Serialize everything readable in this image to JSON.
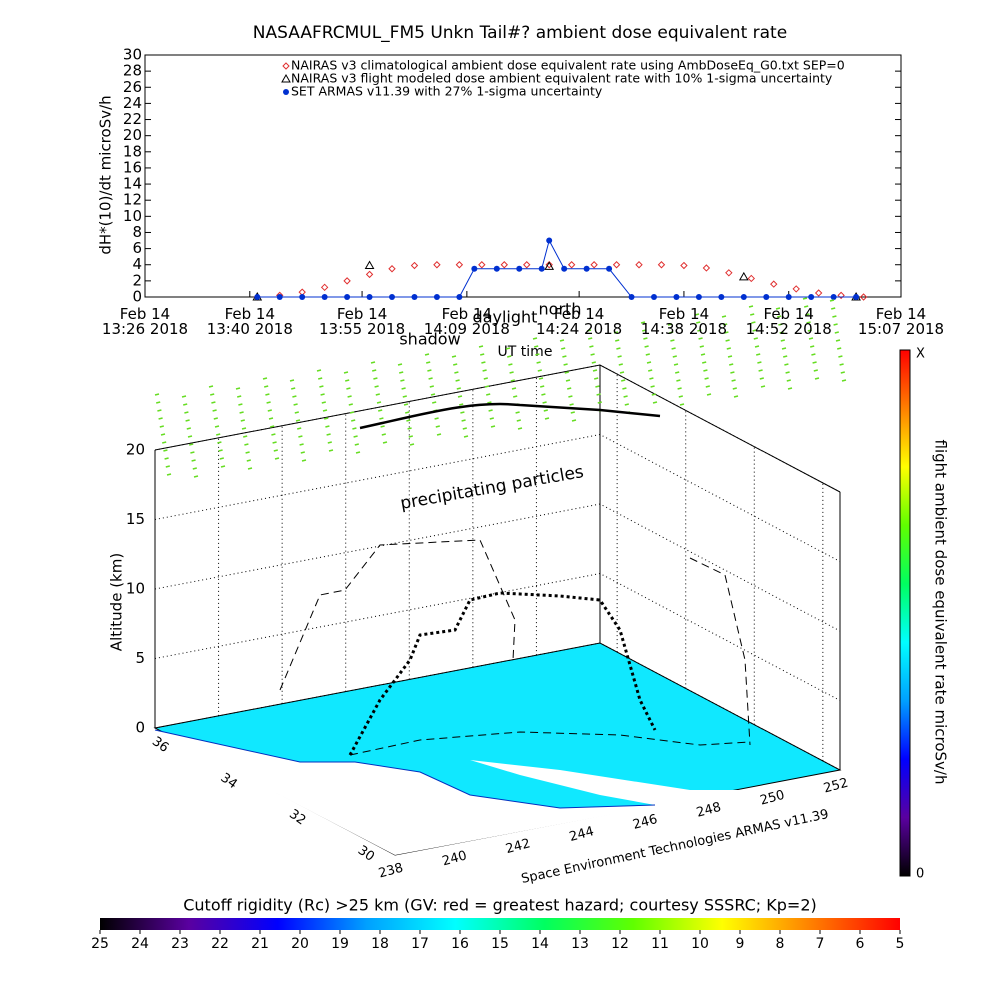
{
  "chart_data": [
    {
      "type": "line",
      "title": "NASAAFRCMUL_FM5 Unkn Tail#? ambient dose equivalent rate",
      "ylabel": "dH*(10)/dt microSv/h",
      "xlabel": "UT time",
      "ylim": [
        0,
        30
      ],
      "yticks": [
        0,
        2,
        4,
        6,
        8,
        10,
        12,
        14,
        16,
        18,
        20,
        22,
        24,
        26,
        28,
        30
      ],
      "xlim": [
        "2018-02-14 13:26",
        "2018-02-14 15:07"
      ],
      "xticks": [
        {
          "value": "2018-02-14 13:26",
          "label": "Feb 14\n13:26 2018"
        },
        {
          "value": "2018-02-14 13:40",
          "label": "Feb 14\n13:40 2018"
        },
        {
          "value": "2018-02-14 13:55",
          "label": "Feb 14\n13:55 2018"
        },
        {
          "value": "2018-02-14 14:09",
          "label": "Feb 14\n14:09 2018"
        },
        {
          "value": "2018-02-14 14:24",
          "label": "Feb 14\n14:24 2018"
        },
        {
          "value": "2018-02-14 14:38",
          "label": "Feb 14\n14:38 2018"
        },
        {
          "value": "2018-02-14 14:52",
          "label": "Feb 14\n14:52 2018"
        },
        {
          "value": "2018-02-14 15:07",
          "label": "Feb 14\n15:07 2018"
        }
      ],
      "annotations": [
        "shadow",
        "daylight",
        "north"
      ],
      "series": [
        {
          "name": "NAIRAS v3 climatological ambient dose equivalent rate using AmbDoseEq_G0.txt SEP=0",
          "color": "#e03030",
          "marker": "diamond",
          "x": [
            "2018-02-14 13:41",
            "2018-02-14 13:44",
            "2018-02-14 13:47",
            "2018-02-14 13:50",
            "2018-02-14 13:53",
            "2018-02-14 13:56",
            "2018-02-14 13:59",
            "2018-02-14 14:02",
            "2018-02-14 14:05",
            "2018-02-14 14:08",
            "2018-02-14 14:11",
            "2018-02-14 14:14",
            "2018-02-14 14:17",
            "2018-02-14 14:20",
            "2018-02-14 14:23",
            "2018-02-14 14:26",
            "2018-02-14 14:29",
            "2018-02-14 14:32",
            "2018-02-14 14:35",
            "2018-02-14 14:38",
            "2018-02-14 14:41",
            "2018-02-14 14:44",
            "2018-02-14 14:47",
            "2018-02-14 14:50",
            "2018-02-14 14:53",
            "2018-02-14 14:56",
            "2018-02-14 14:59",
            "2018-02-14 15:02"
          ],
          "values": [
            0,
            0.2,
            0.6,
            1.2,
            2.0,
            2.8,
            3.5,
            3.9,
            4,
            4,
            4,
            4,
            4,
            4,
            4,
            4,
            4,
            4,
            4,
            3.9,
            3.6,
            3.0,
            2.3,
            1.6,
            1.0,
            0.5,
            0.2,
            0
          ]
        },
        {
          "name": "NAIRAS v3 flight modeled dose ambient equivalent rate with 10% 1-sigma uncertainty",
          "color": "#000000",
          "marker": "triangle",
          "x": [
            "2018-02-14 13:41",
            "2018-02-14 13:56",
            "2018-02-14 14:20",
            "2018-02-14 14:46",
            "2018-02-14 15:01"
          ],
          "values": [
            0,
            3.9,
            3.8,
            2.5,
            0
          ]
        },
        {
          "name": "SET ARMAS v11.39 with 27% 1-sigma uncertainty",
          "color": "#0030d0",
          "marker": "circle",
          "x": [
            "2018-02-14 13:41",
            "2018-02-14 13:44",
            "2018-02-14 13:47",
            "2018-02-14 13:50",
            "2018-02-14 13:53",
            "2018-02-14 13:56",
            "2018-02-14 13:59",
            "2018-02-14 14:02",
            "2018-02-14 14:05",
            "2018-02-14 14:08",
            "2018-02-14 14:10",
            "2018-02-14 14:13",
            "2018-02-14 14:16",
            "2018-02-14 14:19",
            "2018-02-14 14:20",
            "2018-02-14 14:22",
            "2018-02-14 14:25",
            "2018-02-14 14:28",
            "2018-02-14 14:31",
            "2018-02-14 14:34",
            "2018-02-14 14:37",
            "2018-02-14 14:40",
            "2018-02-14 14:43",
            "2018-02-14 14:46",
            "2018-02-14 14:49",
            "2018-02-14 14:52",
            "2018-02-14 14:55",
            "2018-02-14 14:58",
            "2018-02-14 15:01"
          ],
          "values": [
            0,
            0,
            0,
            0,
            0,
            0,
            0,
            0,
            0,
            0,
            3.5,
            3.5,
            3.5,
            3.5,
            7,
            3.5,
            3.5,
            3.5,
            0,
            0,
            0,
            0,
            0,
            0,
            0,
            0,
            0,
            0,
            0
          ]
        }
      ]
    },
    {
      "type": "surface3d",
      "zlabel": "Altitude (km)",
      "zlim": [
        0,
        20
      ],
      "zticks": [
        0,
        5,
        10,
        15,
        20
      ],
      "xlim": [
        238,
        252
      ],
      "xticks": [
        238,
        240,
        242,
        244,
        246,
        248,
        250,
        252
      ],
      "ylim": [
        29.5,
        36.5
      ],
      "yticks": [
        30,
        32,
        34,
        36
      ],
      "annotation": "precipitating particles",
      "credit": "Space Environment Technologies ARMAS v11.39"
    },
    {
      "type": "colorbar",
      "orientation": "vertical",
      "label": "flight ambient dose equivalent rate microSv/h",
      "tick_labels": [
        "0",
        "X"
      ],
      "colormap": [
        "#000000",
        "#5a00a0",
        "#0000ff",
        "#00a0ff",
        "#00ffff",
        "#00ff60",
        "#60ff00",
        "#ffff00",
        "#ff8000",
        "#ff0000"
      ]
    },
    {
      "type": "colorbar",
      "orientation": "horizontal",
      "label": "Cutoff rigidity (Rc) >25 km (GV: red = greatest hazard; courtesy SSSRC; Kp=2)",
      "lim": [
        25,
        5
      ],
      "ticks": [
        25,
        24,
        23,
        22,
        21,
        20,
        19,
        18,
        17,
        16,
        15,
        14,
        13,
        12,
        11,
        10,
        9,
        8,
        7,
        6,
        5
      ],
      "colormap": [
        "#000000",
        "#5a00a0",
        "#0000ff",
        "#00a0ff",
        "#00ffff",
        "#00ff60",
        "#60ff00",
        "#ffff00",
        "#ff8000",
        "#ff0000"
      ]
    }
  ]
}
